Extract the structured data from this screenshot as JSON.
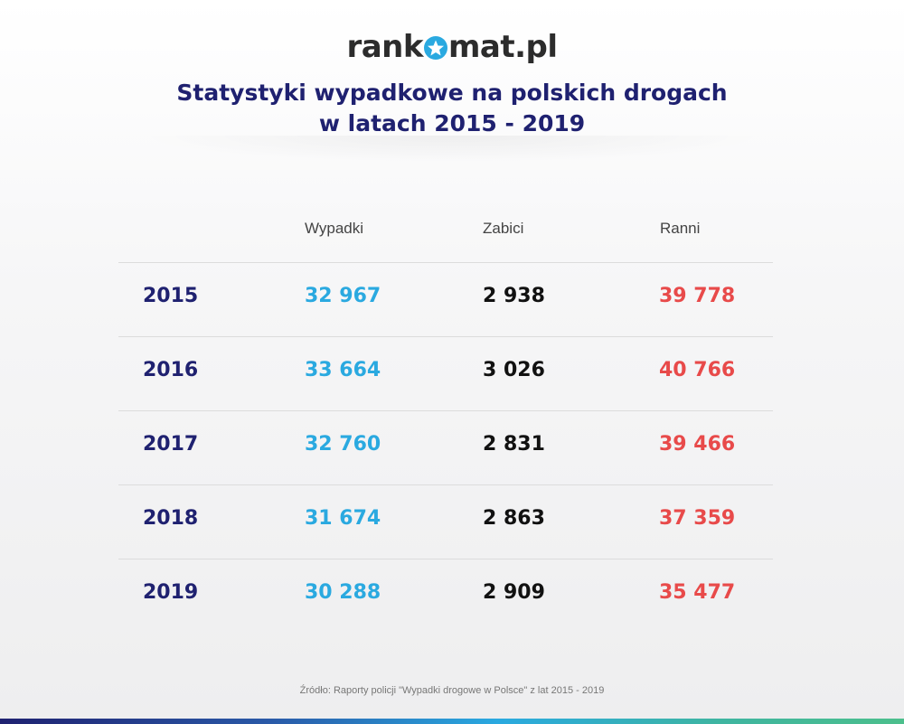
{
  "logo": {
    "before": "rank",
    "after": "mat.pl"
  },
  "title": {
    "line1": "Statystyki wypadkowe na polskich drogach",
    "line2": "w latach 2015 - 2019"
  },
  "columns": {
    "accidents": "Wypadki",
    "killed": "Zabici",
    "injured": "Ranni"
  },
  "rows": [
    {
      "year": "2015",
      "accidents": "32 967",
      "killed": "2 938",
      "injured": "39 778"
    },
    {
      "year": "2016",
      "accidents": "33 664",
      "killed": "3 026",
      "injured": "40 766"
    },
    {
      "year": "2017",
      "accidents": "32 760",
      "killed": "2 831",
      "injured": "39 466"
    },
    {
      "year": "2018",
      "accidents": "31 674",
      "killed": "2 863",
      "injured": "37 359"
    },
    {
      "year": "2019",
      "accidents": "30 288",
      "killed": "2 909",
      "injured": "35 477"
    }
  ],
  "source": "Źródło: Raporty policji \"Wypadki drogowe w Polsce\" z lat 2015 - 2019",
  "colors": {
    "title": "#1f2170",
    "accidents": "#2aa9e0",
    "killed": "#111111",
    "injured": "#e84a4a"
  }
}
